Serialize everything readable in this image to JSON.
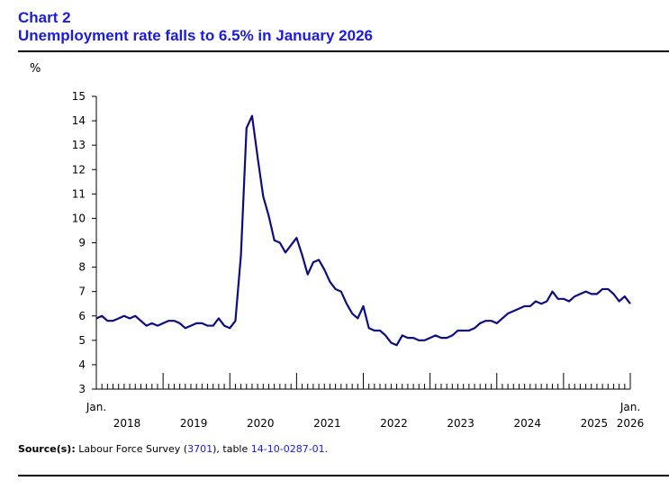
{
  "header": {
    "chart_number": "Chart 2",
    "title": "Unemployment rate falls to 6.5% in January 2026"
  },
  "source": {
    "label": "Source(s):",
    "text_before": "Labour Force Survey (",
    "survey_number": "3701",
    "text_middle": "), table ",
    "table_number": "14-10-0287-01",
    "text_after": "."
  },
  "chart_data": {
    "type": "line",
    "ylabel": "%",
    "ylim": [
      3,
      15
    ],
    "yticks": [
      3,
      4,
      5,
      6,
      7,
      8,
      9,
      10,
      11,
      12,
      13,
      14,
      15
    ],
    "x_start_label": "Jan.",
    "x_end_label_top": "Jan.",
    "x_end_label_bottom": "2026",
    "year_labels": [
      "2018",
      "2019",
      "2020",
      "2021",
      "2022",
      "2023",
      "2024",
      "2025"
    ],
    "grid": false,
    "line_color": "#0d0d80",
    "series": [
      {
        "x_start": "2018-01",
        "values": [
          5.9,
          6.0,
          5.8,
          5.8,
          5.9,
          6.0,
          5.9,
          6.0,
          5.8,
          5.6,
          5.7,
          5.6,
          5.7,
          5.8,
          5.8,
          5.7,
          5.5,
          5.6,
          5.7,
          5.7,
          5.6,
          5.6,
          5.9,
          5.6,
          5.5,
          5.8,
          8.5,
          13.7,
          14.2,
          12.5,
          10.9,
          10.1,
          9.1,
          9.0,
          8.6,
          8.9,
          9.2,
          8.5,
          7.7,
          8.2,
          8.3,
          7.9,
          7.4,
          7.1,
          7.0,
          6.5,
          6.1,
          5.9,
          6.4,
          5.5,
          5.4,
          5.4,
          5.2,
          4.9,
          4.8,
          5.2,
          5.1,
          5.1,
          5.0,
          5.0,
          5.1,
          5.2,
          5.1,
          5.1,
          5.2,
          5.4,
          5.4,
          5.4,
          5.5,
          5.7,
          5.8,
          5.8,
          5.7,
          5.9,
          6.1,
          6.2,
          6.3,
          6.4,
          6.4,
          6.6,
          6.5,
          6.6,
          7.0,
          6.7,
          6.7,
          6.6,
          6.8,
          6.9,
          7.0,
          6.9,
          6.9,
          7.1,
          7.1,
          6.9,
          6.6,
          6.8,
          6.5
        ]
      }
    ]
  }
}
